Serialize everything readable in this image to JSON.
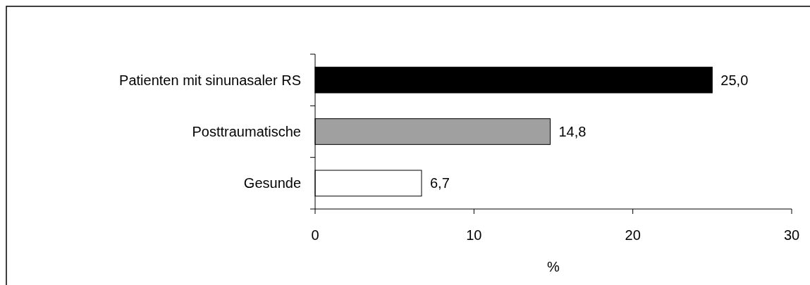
{
  "chart_data": {
    "type": "bar",
    "orientation": "horizontal",
    "xlabel": "%",
    "categories": [
      "Patienten mit sinunasaler RS",
      "Posttraumatische",
      "Gesunde"
    ],
    "values": [
      25.0,
      14.8,
      6.7
    ],
    "colors": [
      "#000000",
      "#a0a0a0",
      "#ffffff"
    ],
    "value_labels": [
      "25,0",
      "14,8",
      "6,7"
    ],
    "xlim": [
      0,
      30
    ],
    "xticks": [
      0,
      10,
      20,
      30
    ],
    "grid": false
  }
}
